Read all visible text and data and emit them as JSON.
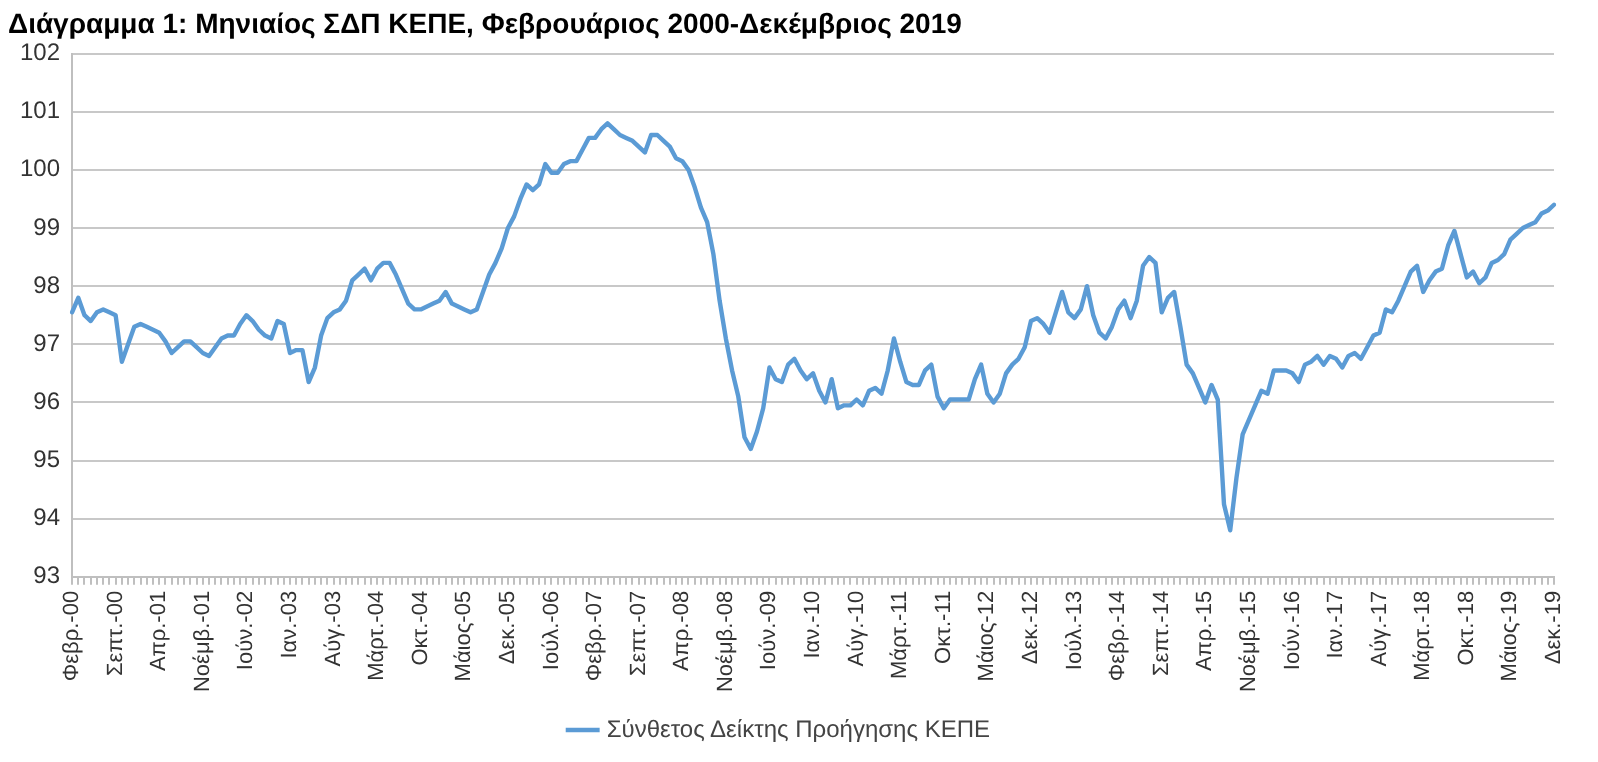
{
  "chart_data": {
    "type": "line",
    "title": "Διάγραμμα 1: Μηνιαίος ΣΔΠ ΚΕΠΕ, Φεβρουάριος 2000-Δεκέμβριος 2019",
    "categories": [
      "Φεβρ.-00",
      null,
      null,
      null,
      null,
      null,
      null,
      "Σεπτ.-00",
      null,
      null,
      null,
      null,
      null,
      null,
      "Απρ.-01",
      null,
      null,
      null,
      null,
      null,
      null,
      "Νοέμβ.-01",
      null,
      null,
      null,
      null,
      null,
      null,
      "Ιούν.-02",
      null,
      null,
      null,
      null,
      null,
      null,
      "Ιαν.-03",
      null,
      null,
      null,
      null,
      null,
      null,
      "Αύγ.-03",
      null,
      null,
      null,
      null,
      null,
      null,
      "Μάρτ.-04",
      null,
      null,
      null,
      null,
      null,
      null,
      "Οκτ.-04",
      null,
      null,
      null,
      null,
      null,
      null,
      "Μάιος-05",
      null,
      null,
      null,
      null,
      null,
      null,
      "Δεκ.-05",
      null,
      null,
      null,
      null,
      null,
      null,
      "Ιούλ.-06",
      null,
      null,
      null,
      null,
      null,
      null,
      "Φεβρ.-07",
      null,
      null,
      null,
      null,
      null,
      null,
      "Σεπτ.-07",
      null,
      null,
      null,
      null,
      null,
      null,
      "Απρ.-08",
      null,
      null,
      null,
      null,
      null,
      null,
      "Νοέμβ.-08",
      null,
      null,
      null,
      null,
      null,
      null,
      "Ιούν.-09",
      null,
      null,
      null,
      null,
      null,
      null,
      "Ιαν.-10",
      null,
      null,
      null,
      null,
      null,
      null,
      "Αύγ.-10",
      null,
      null,
      null,
      null,
      null,
      null,
      "Μάρτ.-11",
      null,
      null,
      null,
      null,
      null,
      null,
      "Οκτ.-11",
      null,
      null,
      null,
      null,
      null,
      null,
      "Μάιος-12",
      null,
      null,
      null,
      null,
      null,
      null,
      "Δεκ.-12",
      null,
      null,
      null,
      null,
      null,
      null,
      "Ιούλ.-13",
      null,
      null,
      null,
      null,
      null,
      null,
      "Φεβρ.-14",
      null,
      null,
      null,
      null,
      null,
      null,
      "Σεπτ.-14",
      null,
      null,
      null,
      null,
      null,
      null,
      "Απρ.-15",
      null,
      null,
      null,
      null,
      null,
      null,
      "Νοέμβ.-15",
      null,
      null,
      null,
      null,
      null,
      null,
      "Ιούν.-16",
      null,
      null,
      null,
      null,
      null,
      null,
      "Ιαν.-17",
      null,
      null,
      null,
      null,
      null,
      null,
      "Αύγ.-17",
      null,
      null,
      null,
      null,
      null,
      null,
      "Μάρτ.-18",
      null,
      null,
      null,
      null,
      null,
      null,
      "Οκτ.-18",
      null,
      null,
      null,
      null,
      null,
      null,
      "Μάιος-19",
      null,
      null,
      null,
      null,
      null,
      null,
      "Δεκ.-19"
    ],
    "series": [
      {
        "name": "Σύνθετος Δείκτης Προήγησης ΚΕΠΕ",
        "color": "#5b9bd5",
        "values": [
          97.55,
          97.8,
          97.5,
          97.4,
          97.55,
          97.6,
          97.55,
          97.5,
          96.7,
          97.0,
          97.3,
          97.35,
          97.3,
          97.25,
          97.2,
          97.05,
          96.85,
          96.95,
          97.05,
          97.05,
          96.95,
          96.85,
          96.8,
          96.95,
          97.1,
          97.15,
          97.15,
          97.35,
          97.5,
          97.4,
          97.25,
          97.15,
          97.1,
          97.4,
          97.35,
          96.85,
          96.9,
          96.9,
          96.35,
          96.6,
          97.15,
          97.45,
          97.55,
          97.6,
          97.75,
          98.1,
          98.2,
          98.3,
          98.1,
          98.3,
          98.4,
          98.4,
          98.2,
          97.95,
          97.7,
          97.6,
          97.6,
          97.65,
          97.7,
          97.75,
          97.9,
          97.7,
          97.65,
          97.6,
          97.55,
          97.6,
          97.9,
          98.2,
          98.4,
          98.65,
          99.0,
          99.2,
          99.5,
          99.75,
          99.65,
          99.75,
          100.1,
          99.95,
          99.95,
          100.1,
          100.15,
          100.15,
          100.35,
          100.55,
          100.55,
          100.7,
          100.8,
          100.7,
          100.6,
          100.55,
          100.5,
          100.4,
          100.3,
          100.6,
          100.6,
          100.5,
          100.4,
          100.2,
          100.15,
          100.0,
          99.7,
          99.35,
          99.1,
          98.55,
          97.75,
          97.1,
          96.55,
          96.1,
          95.4,
          95.2,
          95.5,
          95.9,
          96.6,
          96.4,
          96.35,
          96.65,
          96.75,
          96.55,
          96.4,
          96.5,
          96.2,
          96.0,
          96.4,
          95.9,
          95.95,
          95.95,
          96.05,
          95.95,
          96.2,
          96.25,
          96.15,
          96.55,
          97.1,
          96.7,
          96.35,
          96.3,
          96.3,
          96.55,
          96.65,
          96.1,
          95.9,
          96.05,
          96.05,
          96.05,
          96.05,
          96.4,
          96.65,
          96.15,
          96.0,
          96.15,
          96.5,
          96.65,
          96.75,
          96.95,
          97.4,
          97.45,
          97.35,
          97.2,
          97.55,
          97.9,
          97.55,
          97.45,
          97.6,
          98.0,
          97.5,
          97.2,
          97.1,
          97.3,
          97.6,
          97.75,
          97.45,
          97.75,
          98.35,
          98.5,
          98.4,
          97.55,
          97.8,
          97.9,
          97.3,
          96.65,
          96.5,
          96.25,
          96.0,
          96.3,
          96.05,
          94.25,
          93.8,
          94.7,
          95.45,
          95.7,
          95.95,
          96.2,
          96.15,
          96.55,
          96.55,
          96.55,
          96.5,
          96.35,
          96.65,
          96.7,
          96.8,
          96.65,
          96.8,
          96.75,
          96.6,
          96.8,
          96.85,
          96.75,
          96.95,
          97.15,
          97.2,
          97.6,
          97.55,
          97.75,
          98.0,
          98.25,
          98.35,
          97.9,
          98.1,
          98.25,
          98.3,
          98.7,
          98.95,
          98.55,
          98.15,
          98.25,
          98.05,
          98.15,
          98.4,
          98.45,
          98.55,
          98.8,
          98.9,
          99.0,
          99.05,
          99.1,
          99.25,
          99.3,
          99.4
        ]
      }
    ],
    "ylim": [
      93,
      102
    ],
    "yticks": [
      93,
      94,
      95,
      96,
      97,
      98,
      99,
      100,
      101,
      102
    ],
    "grid": "y",
    "legend": "bottom",
    "marker": "none",
    "line_style": "solid"
  }
}
